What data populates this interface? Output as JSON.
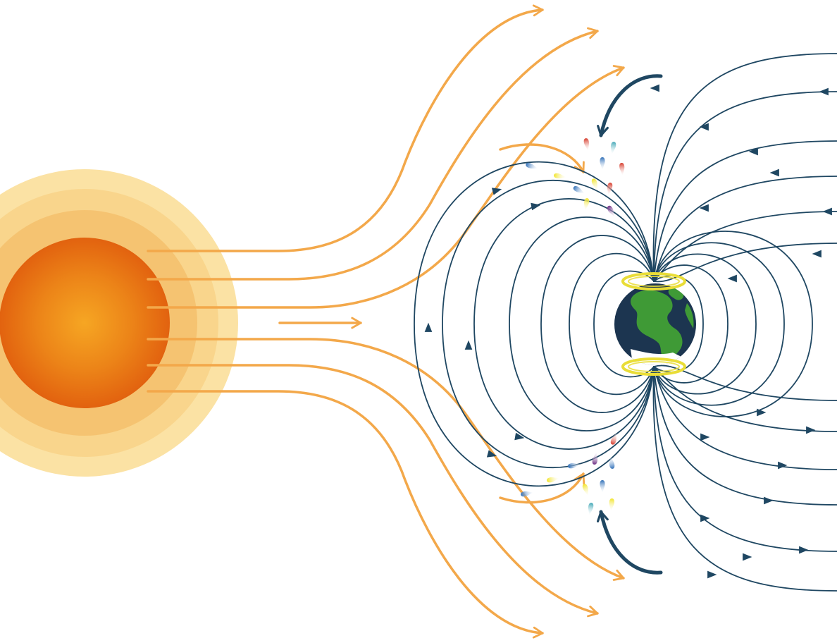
{
  "diagram": {
    "subject": "",
    "colors": {
      "background": "#ffffff",
      "sun_core_center": "#f6a623",
      "sun_core_edge": "#e2620f",
      "sun_halo_outer": "#fbe2a4",
      "sun_halo_mid": "#f8d48a",
      "sun_halo_inner": "#f4bf6c",
      "solar_wind": "#f3a84a",
      "field_lines": "#1f4762",
      "earth_ocean": "#1c3550",
      "earth_land": "#3f9a36",
      "earth_ice": "#ffffff",
      "aurora_ring": "#e9dd37",
      "particle_red": "#d63a2a",
      "particle_blue": "#2f6fb8",
      "particle_teal": "#41a7b6",
      "particle_yellow": "#f1e428",
      "particle_purple": "#6a2a82"
    },
    "icons": [
      "sun-icon",
      "earth-icon",
      "solar-wind-arrow-icon",
      "field-line-arrow-icon",
      "charged-particle-icon",
      "aurora-ring-icon"
    ]
  }
}
